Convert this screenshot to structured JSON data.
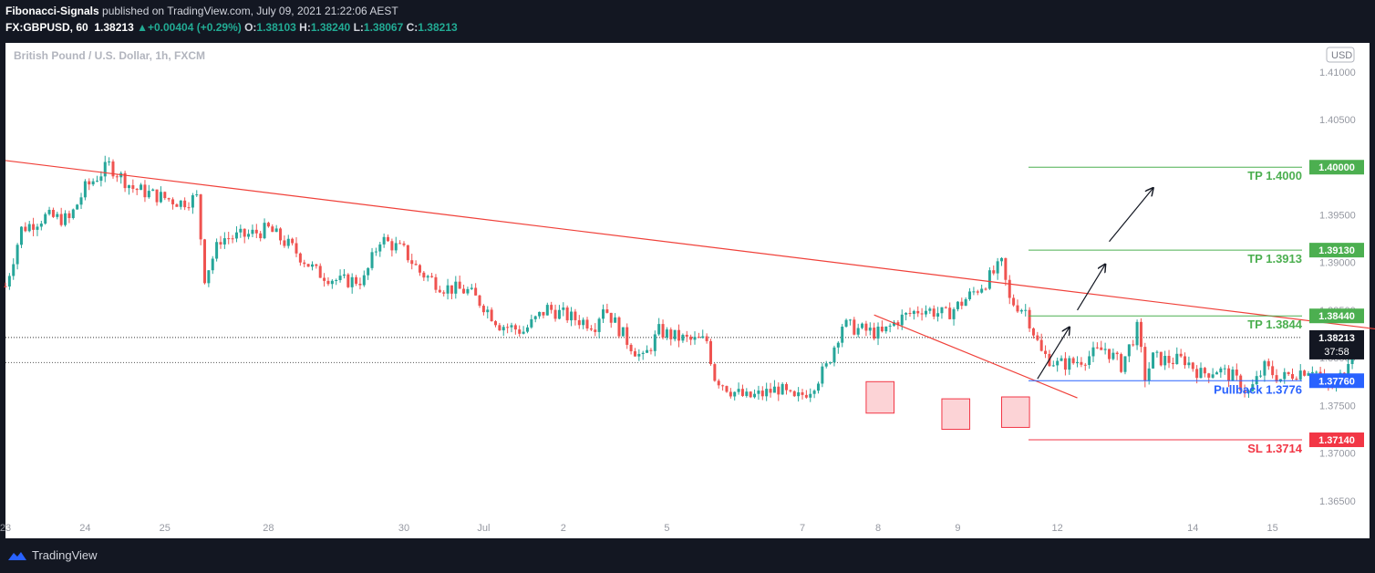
{
  "header": {
    "author": "Fibonacci-Signals",
    "published_text": "published on TradingView.com, July 09, 2021 21:22:06 AEST",
    "symbol": "FX:GBPUSD, 60",
    "last": "1.38213",
    "change": "+0.00404 (+0.29%)",
    "o_label": "O:",
    "o_value": "1.38103",
    "h_label": "H:",
    "h_value": "1.38240",
    "l_label": "L:",
    "l_value": "1.38067",
    "c_label": "C:",
    "c_value": "1.38213"
  },
  "footer": {
    "brand": "TradingView"
  },
  "chart_data": {
    "type": "candlestick",
    "watermark": "British Pound / U.S. Dollar, 1h, FXCM",
    "currency_label": "USD",
    "colors": {
      "background": "#ffffff",
      "up": "#26a69a",
      "down": "#ef5350",
      "target": "#4caf50",
      "pullback": "#2962ff",
      "stop": "#f23645",
      "trendline": "#f0413a",
      "axis_text": "#9598a1"
    },
    "ylim": [
      1.3625,
      1.4095
    ],
    "y_ticks": [
      "1.36500",
      "1.37000",
      "1.37500",
      "1.38000",
      "1.38500",
      "1.39000",
      "1.39500",
      "1.40000",
      "1.40500",
      "1.41000"
    ],
    "x_ticks": [
      "23",
      "24",
      "25",
      "28",
      "30",
      "Jul",
      "2",
      "5",
      "7",
      "8",
      "9",
      "12",
      "14",
      "15"
    ],
    "candle_path": [
      [
        0,
        1.3875
      ],
      [
        4,
        1.3935
      ],
      [
        10,
        1.3948
      ],
      [
        16,
        1.3945
      ],
      [
        20,
        1.3978
      ],
      [
        26,
        1.4002
      ],
      [
        32,
        1.3978
      ],
      [
        38,
        1.397
      ],
      [
        44,
        1.3963
      ],
      [
        48,
        1.3968
      ],
      [
        50,
        1.3885
      ],
      [
        54,
        1.3925
      ],
      [
        60,
        1.3928
      ],
      [
        66,
        1.3935
      ],
      [
        72,
        1.3915
      ],
      [
        78,
        1.389
      ],
      [
        84,
        1.388
      ],
      [
        90,
        1.3882
      ],
      [
        94,
        1.3925
      ],
      [
        100,
        1.3912
      ],
      [
        104,
        1.389
      ],
      [
        110,
        1.3874
      ],
      [
        116,
        1.387
      ],
      [
        120,
        1.3855
      ],
      [
        124,
        1.3835
      ],
      [
        130,
        1.3828
      ],
      [
        136,
        1.3852
      ],
      [
        142,
        1.3842
      ],
      [
        148,
        1.3835
      ],
      [
        150,
        1.3855
      ],
      [
        156,
        1.3818
      ],
      [
        160,
        1.3798
      ],
      [
        164,
        1.3828
      ],
      [
        168,
        1.3822
      ],
      [
        172,
        1.3818
      ],
      [
        176,
        1.3818
      ],
      [
        178,
        1.378
      ],
      [
        182,
        1.3766
      ],
      [
        186,
        1.3758
      ],
      [
        190,
        1.3762
      ],
      [
        194,
        1.3768
      ],
      [
        198,
        1.3755
      ],
      [
        202,
        1.3768
      ],
      [
        206,
        1.379
      ],
      [
        210,
        1.3835
      ],
      [
        214,
        1.383
      ],
      [
        220,
        1.3825
      ],
      [
        224,
        1.384
      ],
      [
        230,
        1.3852
      ],
      [
        236,
        1.3845
      ],
      [
        240,
        1.3858
      ],
      [
        246,
        1.388
      ],
      [
        250,
        1.3898
      ],
      [
        252,
        1.386
      ],
      [
        256,
        1.385
      ],
      [
        260,
        1.3805
      ],
      [
        264,
        1.3793
      ],
      [
        268,
        1.3795
      ],
      [
        272,
        1.3802
      ],
      [
        276,
        1.381
      ],
      [
        280,
        1.3792
      ],
      [
        284,
        1.383
      ],
      [
        286,
        1.378
      ],
      [
        288,
        1.38
      ],
      [
        292,
        1.3797
      ],
      [
        296,
        1.3798
      ],
      [
        300,
        1.3783
      ],
      [
        304,
        1.3788
      ],
      [
        308,
        1.378
      ],
      [
        312,
        1.3763
      ],
      [
        316,
        1.379
      ],
      [
        320,
        1.3778
      ],
      [
        324,
        1.3785
      ],
      [
        328,
        1.379
      ],
      [
        332,
        1.377
      ],
      [
        334,
        1.377
      ],
      [
        336,
        1.379
      ],
      [
        339,
        1.3822
      ]
    ],
    "x_tick_index": {
      "23": 0,
      "24": 20,
      "25": 40,
      "28": 66,
      "30": 100,
      "Jul": 120,
      "2": 140,
      "5": 166,
      "7": 200,
      "8": 219,
      "9": 239,
      "12": 264,
      "14": 298,
      "15": 318
    },
    "levels": [
      {
        "name": "tp-1-4000",
        "value": 1.4,
        "label": "TP 1.4000",
        "tag": "1.40000",
        "color": "#4caf50"
      },
      {
        "name": "tp-1-3913",
        "value": 1.3913,
        "label": "TP 1.3913",
        "tag": "1.39130",
        "color": "#4caf50"
      },
      {
        "name": "tp-1-3844",
        "value": 1.3844,
        "label": "TP 1.3844",
        "tag": "1.38440",
        "color": "#4caf50"
      },
      {
        "name": "pullback-1-3776",
        "value": 1.3776,
        "label": "Pullback 1.3776",
        "tag": "1.37760",
        "color": "#2962ff"
      },
      {
        "name": "sl-1-3714",
        "value": 1.3714,
        "label": "SL 1.3714",
        "tag": "1.37140",
        "color": "#f23645"
      }
    ],
    "current_price": {
      "value": 1.38213,
      "tag": "1.38213",
      "countdown": "37:58"
    },
    "prev_level": 1.3795,
    "trendlines": [
      {
        "name": "main-downtrend",
        "from": [
          0,
          1.4007
        ],
        "to": [
          362,
          1.3821
        ]
      },
      {
        "name": "short-downtrend",
        "from": [
          218,
          1.3845
        ],
        "to": [
          269,
          1.3758
        ]
      }
    ],
    "support_boxes": [
      {
        "name": "support-box-1",
        "x": [
          216,
          223
        ],
        "y": [
          1.3742,
          1.3775
        ]
      },
      {
        "name": "support-box-2",
        "x": [
          235,
          242
        ],
        "y": [
          1.3725,
          1.3757
        ]
      },
      {
        "name": "support-box-3",
        "x": [
          250,
          257
        ],
        "y": [
          1.3727,
          1.3759
        ]
      }
    ],
    "arrows": [
      {
        "name": "arrow-to-tp1",
        "from": [
          259,
          1.3778
        ],
        "to": [
          267,
          1.3832
        ]
      },
      {
        "name": "arrow-to-tp2",
        "from": [
          269,
          1.385
        ],
        "to": [
          276,
          1.3898
        ]
      },
      {
        "name": "arrow-to-tp3",
        "from": [
          277,
          1.3922
        ],
        "to": [
          288,
          1.3978
        ]
      }
    ]
  }
}
